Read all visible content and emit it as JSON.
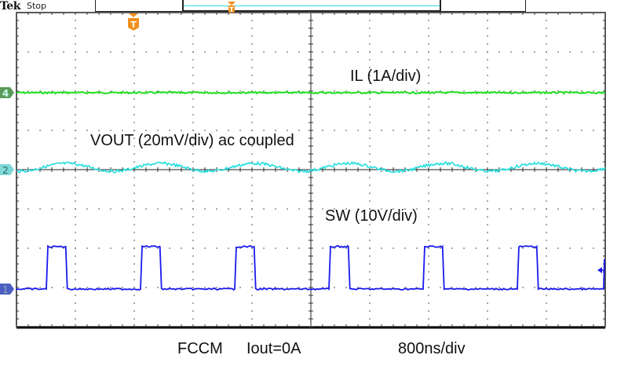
{
  "header": {
    "brand": "Tek",
    "acq_status": "Stop"
  },
  "annotations": {
    "il": "IL (1A/div)",
    "vout": "VOUT (20mV/div) ac coupled",
    "sw": "SW (10V/div)",
    "mode": "FCCM",
    "iout": "Iout=0A",
    "timebase": "800ns/div"
  },
  "channels": [
    {
      "id": "4",
      "name": "IL",
      "color": "#22dd22",
      "scale": "1A/div"
    },
    {
      "id": "2",
      "name": "VOUT",
      "color": "#22dddd",
      "scale": "20mV/div",
      "coupling": "ac coupled"
    },
    {
      "id": "1",
      "name": "SW",
      "color": "#1a1aee",
      "scale": "10V/div"
    }
  ],
  "colors": {
    "trigger": "#f0901e",
    "grid": "#333333",
    "ch1": "#1a1aee",
    "ch2": "#22dddd",
    "ch4": "#22dd22"
  },
  "chart_data": {
    "type": "line",
    "title": "FCCM Iout=0A",
    "xlabel": "Time (800ns/div)",
    "ylabel": "",
    "grid": true,
    "divisions": {
      "horizontal": 10,
      "vertical": 8
    },
    "time_per_div_ns": 800,
    "series": [
      {
        "name": "IL (1A/div)",
        "channel": 4,
        "shape": "flat",
        "level_div": 2.0,
        "note": "flat trace, no ripple visible"
      },
      {
        "name": "VOUT (20mV/div) ac coupled",
        "channel": 2,
        "shape": "ripple",
        "period_div": 1.6,
        "peak_to_peak_div": 0.3,
        "note": "small ripple around ch2 ground marker"
      },
      {
        "name": "SW (10V/div)",
        "channel": 1,
        "shape": "pulse",
        "high_div": 1.1,
        "low_div": 0,
        "period_div": 1.6,
        "pulse_width_div": 0.33,
        "rising_edges_div": [
          0.4,
          2.0,
          3.6,
          5.2,
          6.8,
          8.4
        ]
      }
    ]
  }
}
